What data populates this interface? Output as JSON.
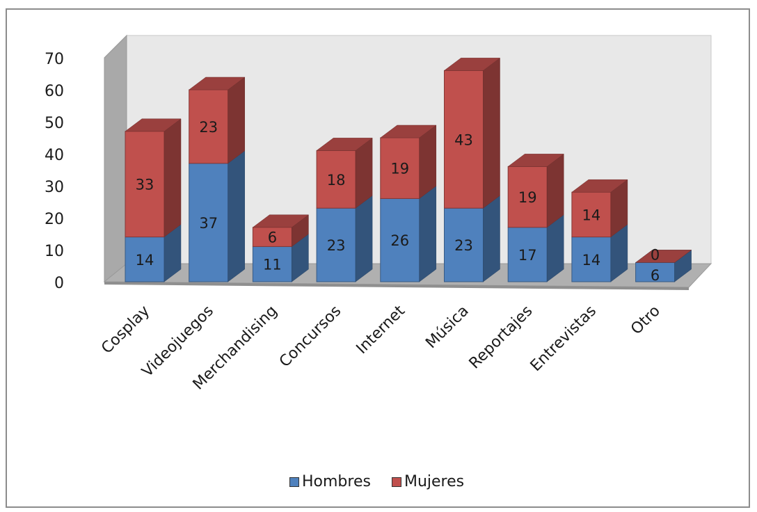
{
  "chart_data": {
    "type": "bar",
    "stacked": true,
    "three_d": true,
    "categories": [
      "Cosplay",
      "Videojuegos",
      "Merchandising",
      "Concursos",
      "Internet",
      "Música",
      "Reportajes",
      "Entrevistas",
      "Otro"
    ],
    "series": [
      {
        "name": "Hombres",
        "values": [
          14,
          37,
          11,
          23,
          26,
          23,
          17,
          14,
          6
        ],
        "color": "#4f81bd"
      },
      {
        "name": "Mujeres",
        "values": [
          33,
          23,
          6,
          18,
          19,
          43,
          19,
          14,
          0
        ],
        "color": "#c0504d"
      }
    ],
    "value_labels": [
      [
        "14",
        "37",
        "11",
        "23",
        "26",
        "23",
        "17",
        "14",
        "6"
      ],
      [
        "33",
        "23",
        "6",
        "18",
        "19",
        "43",
        "19",
        "14",
        "0"
      ]
    ],
    "y_ticks": [
      "0",
      "10",
      "20",
      "30",
      "40",
      "50",
      "60",
      "70"
    ],
    "ylim": [
      0,
      70
    ],
    "legend_position": "bottom",
    "grid": false
  }
}
